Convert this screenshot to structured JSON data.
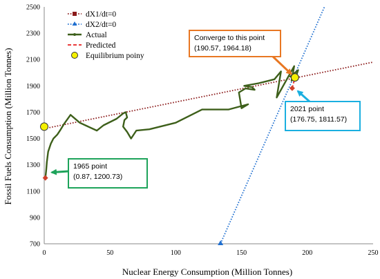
{
  "chart_data": {
    "type": "line",
    "xlabel": "Nuclear Energy Consumption (Million Tonnes)",
    "ylabel": "Fossil Fuels Consumption (Million Tonnes)",
    "xlim": [
      0,
      250
    ],
    "ylim": [
      700,
      2500
    ],
    "x_ticks": [
      0,
      50,
      100,
      150,
      200,
      250
    ],
    "y_ticks": [
      700,
      900,
      1100,
      1300,
      1500,
      1700,
      1900,
      2100,
      2300,
      2500
    ],
    "grid": false,
    "legend_position": "top-left",
    "series": [
      {
        "name": "dX1/dt=0",
        "style": "dotted",
        "color": "#8B1A1A",
        "marker": "square",
        "x": [
          0,
          250
        ],
        "y": [
          1575,
          2080
        ]
      },
      {
        "name": "dX2/dt=0",
        "style": "dotted",
        "color": "#1F6FD0",
        "marker": "triangle",
        "x": [
          134,
          213
        ],
        "y": [
          700,
          2500
        ]
      },
      {
        "name": "Actual",
        "style": "solid",
        "color": "#3D5F1A",
        "marker": "circle",
        "x": [
          0.87,
          1.5,
          2,
          3,
          5,
          7,
          10,
          12,
          15,
          20,
          27,
          40,
          45,
          55,
          60,
          62,
          63,
          61,
          60,
          63,
          66,
          70,
          80,
          100,
          120,
          140,
          155,
          150,
          148,
          153,
          160,
          158,
          152,
          163,
          175,
          180,
          176.75,
          185,
          190,
          188,
          192,
          193,
          187,
          190.57
        ],
        "y": [
          1200.73,
          1260,
          1320,
          1400,
          1460,
          1500,
          1530,
          1560,
          1610,
          1680,
          1620,
          1560,
          1600,
          1650,
          1690,
          1700,
          1660,
          1640,
          1590,
          1550,
          1500,
          1560,
          1570,
          1620,
          1720,
          1720,
          1760,
          1730,
          1850,
          1880,
          1870,
          1890,
          1900,
          1920,
          1950,
          2010,
          1811.57,
          1960,
          2050,
          1940,
          1990,
          2020,
          1970,
          1964.18
        ]
      },
      {
        "name": "Predicted",
        "style": "dashed",
        "color": "#E81F1F",
        "marker": "circle",
        "x": [
          188,
          189,
          190,
          190.57
        ],
        "y": [
          1880,
          1900,
          1940,
          1964.18
        ]
      },
      {
        "name": "Equilibrium poiny",
        "style": "marker",
        "color": "#F4F000",
        "marker": "circle",
        "x": [
          0,
          190.57
        ],
        "y": [
          1590,
          1964.18
        ]
      }
    ],
    "start_marker": {
      "x": 0.87,
      "y": 1200.73,
      "color": "#D0402A"
    },
    "end_marker": {
      "x": 188.5,
      "y": 1882,
      "color": "#D0402A"
    },
    "annotations": [
      {
        "id": "converge",
        "lines": [
          "Converge to this point",
          "(190.57, 1964.18)"
        ],
        "border": "#E87722",
        "arrow_color": "#E87722",
        "target": [
          190.57,
          1964.18
        ]
      },
      {
        "id": "p2021",
        "lines": [
          "2021 point",
          "(176.75, 1811.57)"
        ],
        "border": "#1AAFE0",
        "arrow_color": "#1AAFE0",
        "target": [
          190,
          1885
        ]
      },
      {
        "id": "p1965",
        "lines": [
          "1965 point",
          "(0.87, 1200.73)"
        ],
        "border": "#1DA35A",
        "arrow_color": "#1DA35A",
        "target": [
          2,
          1240
        ]
      }
    ]
  }
}
